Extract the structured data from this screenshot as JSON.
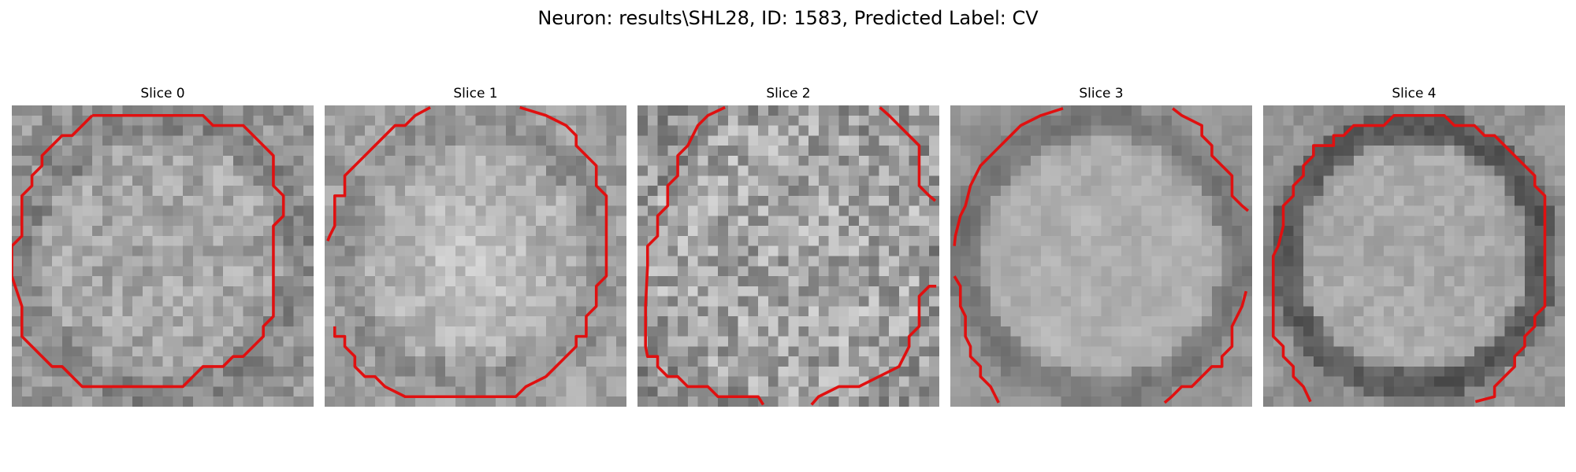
{
  "figure": {
    "title": "Neuron: results\\SHL28, ID: 1583, Predicted Label: CV",
    "contour_color": "#e01010"
  },
  "panels": [
    {
      "title": "Slice 0",
      "pattern": "ring-faint",
      "contour": "closed"
    },
    {
      "title": "Slice 1",
      "pattern": "bright-center",
      "contour": "open-top"
    },
    {
      "title": "Slice 2",
      "pattern": "noisy",
      "contour": "split"
    },
    {
      "title": "Slice 3",
      "pattern": "soft-disc",
      "contour": "split"
    },
    {
      "title": "Slice 4",
      "pattern": "dark-ring",
      "contour": "open-bottom"
    }
  ]
}
